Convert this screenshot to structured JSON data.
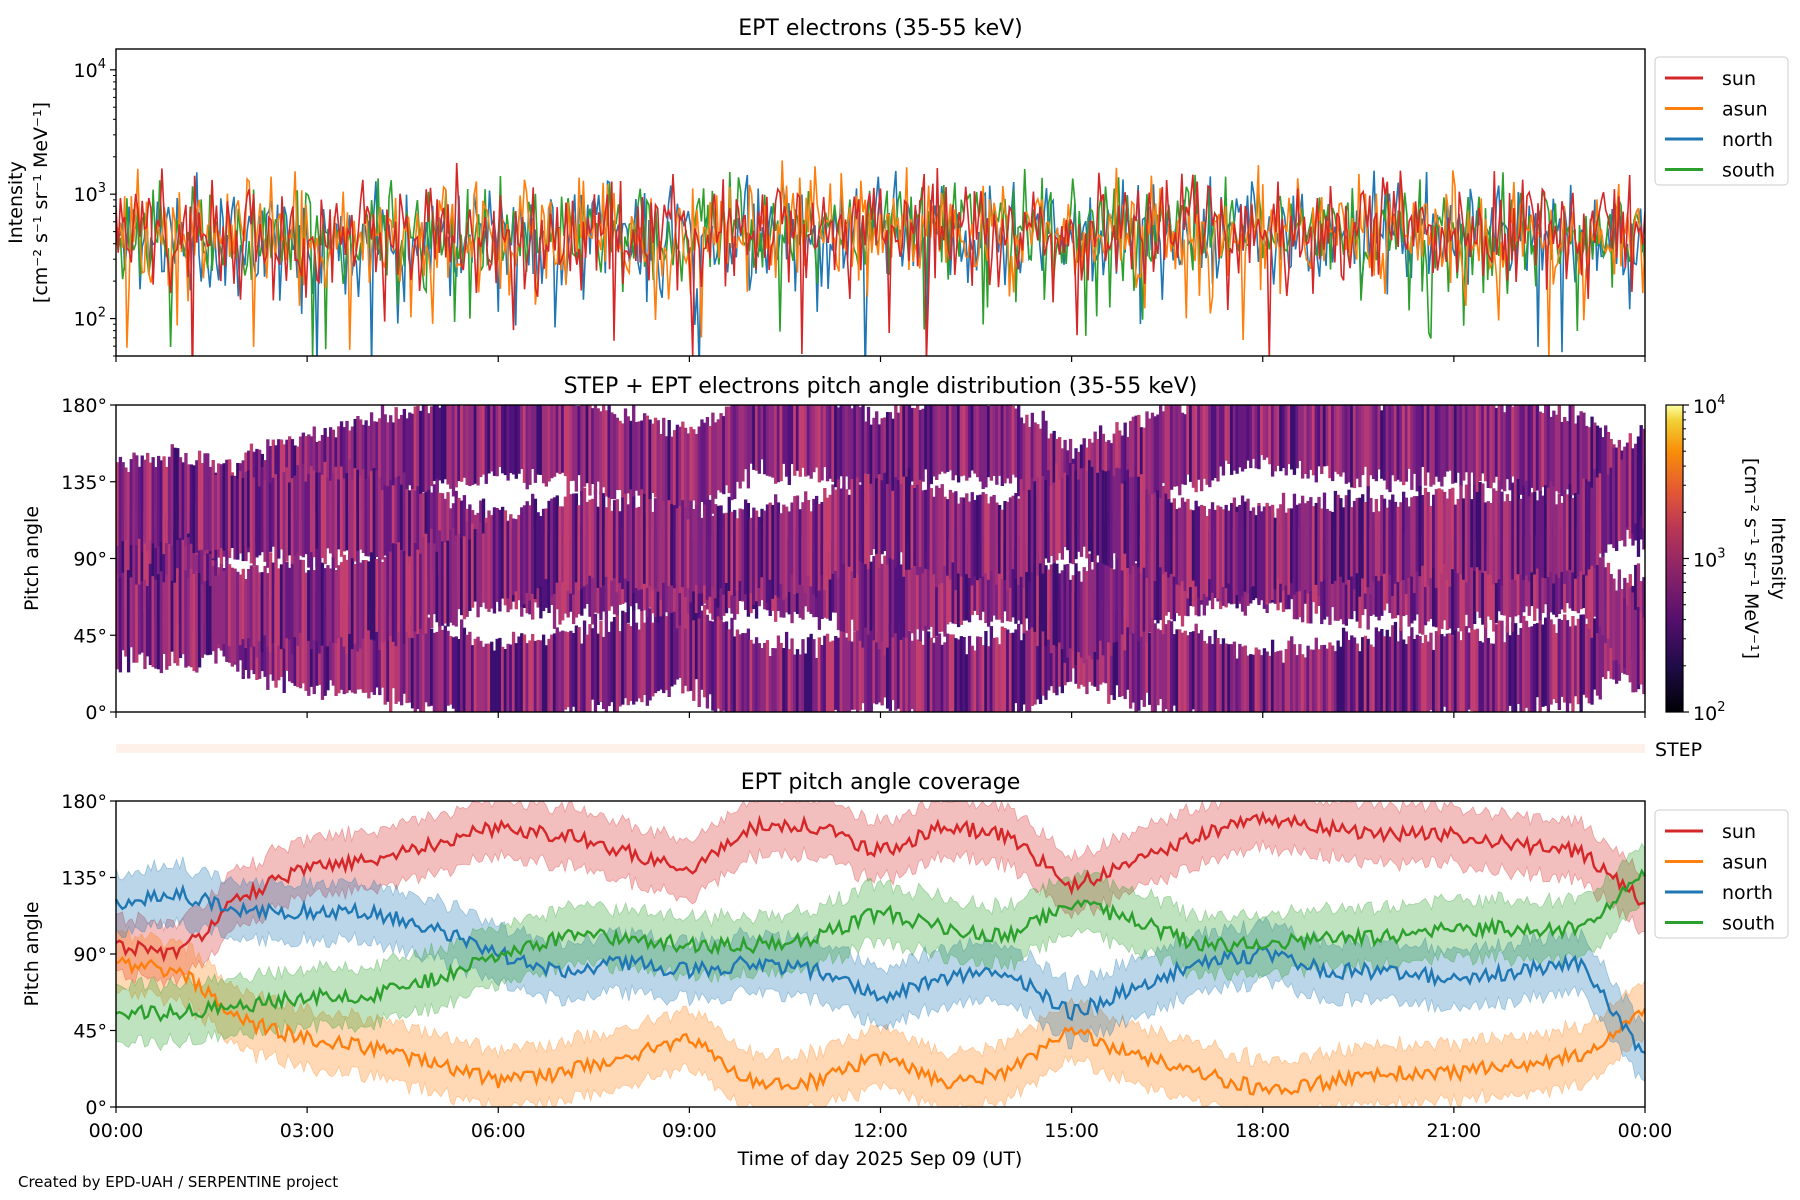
{
  "footer": "Created by EPD-UAH / SERPENTINE project",
  "xlabel": "Time of day 2025 Sep 09 (UT)",
  "xticks": [
    "00:00",
    "03:00",
    "06:00",
    "09:00",
    "12:00",
    "15:00",
    "18:00",
    "21:00",
    "00:00"
  ],
  "colors": {
    "sun": "#d62728",
    "asun": "#ff7f0e",
    "north": "#1f77b4",
    "south": "#2ca02c"
  },
  "chart_data": [
    {
      "type": "line",
      "title": "EPT electrons (35-55 keV)",
      "ylabel": "Intensity",
      "yunits": "[cm⁻² s⁻¹ sr⁻¹ MeV⁻¹]",
      "yscale": "log",
      "ylim": [
        50,
        14700
      ],
      "ytick_base": "10",
      "ytick_exps": [
        "2",
        "3",
        "4"
      ],
      "xlim_hours": [
        0,
        24
      ],
      "legend": [
        "sun",
        "asun",
        "north",
        "south"
      ],
      "legend_placement": "outside-right-top",
      "x_hours": [
        0,
        2,
        4,
        6,
        8,
        10,
        12,
        14,
        16,
        18,
        20,
        22,
        24
      ],
      "series": [
        {
          "name": "sun",
          "values": [
            480,
            470,
            480,
            490,
            500,
            520,
            540,
            530,
            520,
            510,
            500,
            490,
            470
          ]
        },
        {
          "name": "asun",
          "values": [
            470,
            460,
            470,
            480,
            490,
            510,
            530,
            520,
            510,
            500,
            490,
            480,
            460
          ]
        },
        {
          "name": "north",
          "values": [
            460,
            450,
            460,
            470,
            480,
            500,
            520,
            510,
            500,
            490,
            480,
            470,
            450
          ]
        },
        {
          "name": "south",
          "values": [
            470,
            460,
            470,
            480,
            500,
            520,
            540,
            530,
            520,
            510,
            500,
            490,
            470
          ]
        }
      ]
    },
    {
      "type": "heatmap",
      "title": "STEP + EPT electrons pitch angle distribution (35-55 keV)",
      "ylabel": "Pitch angle",
      "yticks": [
        "0°",
        "45°",
        "90°",
        "135°",
        "180°"
      ],
      "ylim": [
        0,
        180
      ],
      "colorbar": {
        "label": "Intensity",
        "units": "[cm⁻² s⁻¹ sr⁻¹ MeV⁻¹]",
        "scale": "log",
        "range": [
          100,
          10000
        ],
        "tick_base": "10",
        "tick_exps": [
          "2",
          "3",
          "4"
        ],
        "colormap": "inferno"
      },
      "note": "Intensity ~300–1000 over the pitch-angle coverage bands of the four EPT directions"
    },
    {
      "type": "area",
      "title": "EPT pitch angle coverage",
      "ylabel": "Pitch angle",
      "yticks": [
        "0°",
        "45°",
        "90°",
        "135°",
        "180°"
      ],
      "ylim": [
        0,
        180
      ],
      "band_halfwidth_deg": 17,
      "legend": [
        "sun",
        "asun",
        "north",
        "south"
      ],
      "legend_placement": "outside-right-top",
      "x_hours": [
        0,
        1,
        2,
        3,
        4,
        5,
        6,
        7,
        8,
        9,
        10,
        11,
        12,
        13,
        14,
        15,
        16,
        17,
        18,
        19,
        20,
        21,
        22,
        23,
        24
      ],
      "series": [
        {
          "name": "sun",
          "values": [
            95,
            90,
            125,
            140,
            145,
            155,
            165,
            160,
            150,
            140,
            165,
            165,
            150,
            165,
            160,
            130,
            145,
            160,
            170,
            165,
            160,
            160,
            155,
            150,
            120
          ]
        },
        {
          "name": "asun",
          "values": [
            85,
            80,
            50,
            40,
            35,
            25,
            15,
            20,
            30,
            40,
            15,
            15,
            30,
            15,
            20,
            45,
            30,
            20,
            10,
            15,
            20,
            20,
            25,
            30,
            60
          ]
        },
        {
          "name": "north",
          "values": [
            120,
            125,
            115,
            115,
            115,
            105,
            90,
            80,
            85,
            80,
            85,
            80,
            65,
            75,
            80,
            55,
            70,
            85,
            90,
            80,
            80,
            75,
            80,
            85,
            30
          ]
        },
        {
          "name": "south",
          "values": [
            55,
            55,
            60,
            65,
            65,
            75,
            90,
            100,
            100,
            95,
            95,
            100,
            115,
            105,
            100,
            120,
            110,
            95,
            95,
            100,
            100,
            105,
            105,
            105,
            140
          ]
        }
      ]
    }
  ],
  "step_label": "STEP"
}
